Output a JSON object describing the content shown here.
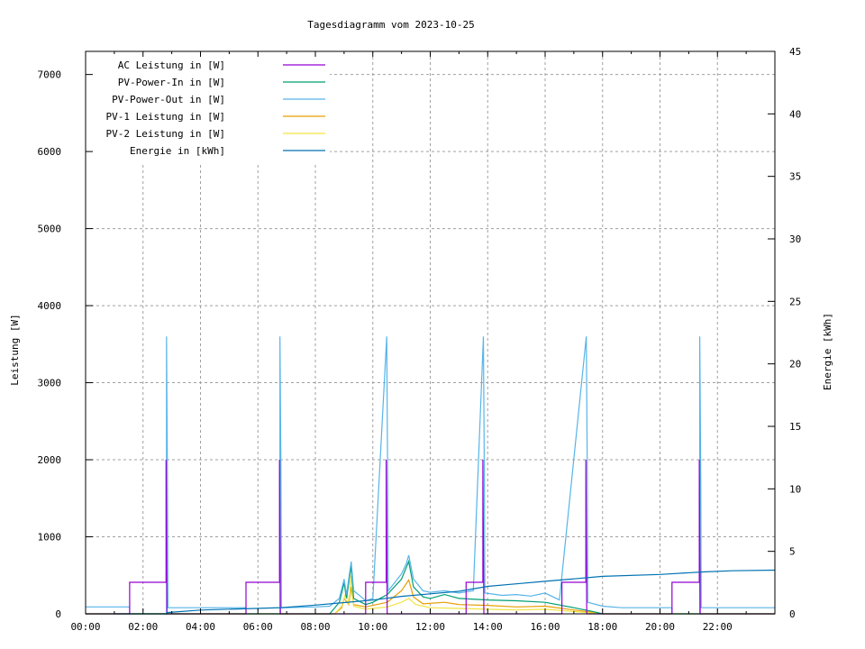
{
  "chart_data": {
    "type": "line",
    "title": "Tagesdiagramm vom 2023-10-25",
    "xlabel": "",
    "ylabel": "Leistung [W]",
    "y2label": "Energie [kWh]",
    "xlim": [
      "00:00",
      "24:00"
    ],
    "ylim": [
      0,
      7300
    ],
    "y2lim": [
      0,
      45
    ],
    "x_ticks": [
      "00:00",
      "02:00",
      "04:00",
      "06:00",
      "08:00",
      "10:00",
      "12:00",
      "14:00",
      "16:00",
      "18:00",
      "20:00",
      "22:00"
    ],
    "y_ticks": [
      "0",
      "1000",
      "2000",
      "3000",
      "4000",
      "5000",
      "6000",
      "7000"
    ],
    "y2_ticks": [
      "0",
      "5",
      "10",
      "15",
      "20",
      "25",
      "30",
      "35",
      "40",
      "45"
    ],
    "grid": true,
    "legend_placement": "top-left",
    "series": [
      {
        "name": "AC Leistung in [W]",
        "color": "#9400d3",
        "axis": "y",
        "points": [
          [
            "00:00",
            0
          ],
          [
            "01:32",
            0
          ],
          [
            "01:32",
            410
          ],
          [
            "02:48",
            410
          ],
          [
            "02:48",
            2000
          ],
          [
            "02:50",
            0
          ],
          [
            "05:35",
            0
          ],
          [
            "05:35",
            410
          ],
          [
            "06:45",
            410
          ],
          [
            "06:45",
            2000
          ],
          [
            "06:47",
            0
          ],
          [
            "09:45",
            0
          ],
          [
            "09:45",
            410
          ],
          [
            "10:28",
            410
          ],
          [
            "10:28",
            2000
          ],
          [
            "10:30",
            0
          ],
          [
            "13:15",
            0
          ],
          [
            "13:15",
            410
          ],
          [
            "13:50",
            410
          ],
          [
            "13:50",
            2000
          ],
          [
            "13:52",
            0
          ],
          [
            "16:35",
            0
          ],
          [
            "16:35",
            410
          ],
          [
            "17:25",
            410
          ],
          [
            "17:25",
            2000
          ],
          [
            "17:27",
            0
          ],
          [
            "20:25",
            0
          ],
          [
            "20:25",
            410
          ],
          [
            "21:22",
            410
          ],
          [
            "21:22",
            2000
          ],
          [
            "21:24",
            0
          ],
          [
            "24:00",
            0
          ]
        ]
      },
      {
        "name": "PV-Power-In in [W]",
        "color": "#009e73",
        "axis": "y",
        "points": [
          [
            "00:00",
            0
          ],
          [
            "08:30",
            0
          ],
          [
            "08:50",
            150
          ],
          [
            "09:00",
            400
          ],
          [
            "09:05",
            200
          ],
          [
            "09:15",
            620
          ],
          [
            "09:20",
            200
          ],
          [
            "09:45",
            120
          ],
          [
            "10:00",
            150
          ],
          [
            "10:30",
            250
          ],
          [
            "11:00",
            450
          ],
          [
            "11:15",
            680
          ],
          [
            "11:25",
            350
          ],
          [
            "11:45",
            220
          ],
          [
            "12:00",
            200
          ],
          [
            "12:30",
            250
          ],
          [
            "13:00",
            200
          ],
          [
            "14:00",
            180
          ],
          [
            "15:00",
            170
          ],
          [
            "16:00",
            150
          ],
          [
            "17:00",
            80
          ],
          [
            "17:40",
            30
          ],
          [
            "18:00",
            0
          ],
          [
            "24:00",
            0
          ]
        ]
      },
      {
        "name": "PV-Power-Out in [W]",
        "color": "#56b4e9",
        "axis": "y",
        "points": [
          [
            "00:00",
            90
          ],
          [
            "01:32",
            90
          ],
          [
            "01:32",
            0
          ],
          [
            "02:49",
            0
          ],
          [
            "02:49",
            3600
          ],
          [
            "02:51",
            1800
          ],
          [
            "02:52",
            80
          ],
          [
            "05:35",
            80
          ],
          [
            "05:35",
            0
          ],
          [
            "06:46",
            0
          ],
          [
            "06:46",
            3600
          ],
          [
            "06:48",
            1800
          ],
          [
            "06:49",
            80
          ],
          [
            "08:00",
            90
          ],
          [
            "08:30",
            100
          ],
          [
            "08:50",
            200
          ],
          [
            "09:00",
            450
          ],
          [
            "09:05",
            250
          ],
          [
            "09:15",
            680
          ],
          [
            "09:20",
            300
          ],
          [
            "09:30",
            250
          ],
          [
            "09:45",
            170
          ],
          [
            "10:00",
            200
          ],
          [
            "10:29",
            3600
          ],
          [
            "10:31",
            1800
          ],
          [
            "10:32",
            300
          ],
          [
            "10:45",
            400
          ],
          [
            "11:00",
            520
          ],
          [
            "11:10",
            650
          ],
          [
            "11:15",
            760
          ],
          [
            "11:25",
            450
          ],
          [
            "11:45",
            300
          ],
          [
            "12:00",
            280
          ],
          [
            "12:30",
            300
          ],
          [
            "13:00",
            270
          ],
          [
            "13:30",
            300
          ],
          [
            "13:51",
            3600
          ],
          [
            "13:53",
            1800
          ],
          [
            "13:54",
            270
          ],
          [
            "14:30",
            240
          ],
          [
            "15:00",
            250
          ],
          [
            "15:30",
            230
          ],
          [
            "16:00",
            270
          ],
          [
            "16:30",
            180
          ],
          [
            "17:26",
            3600
          ],
          [
            "17:28",
            1800
          ],
          [
            "17:29",
            150
          ],
          [
            "18:00",
            100
          ],
          [
            "18:40",
            80
          ],
          [
            "20:25",
            80
          ],
          [
            "20:25",
            0
          ],
          [
            "21:23",
            0
          ],
          [
            "21:23",
            3600
          ],
          [
            "21:25",
            1800
          ],
          [
            "21:26",
            80
          ],
          [
            "24:00",
            80
          ]
        ]
      },
      {
        "name": "PV-1 Leistung in [W]",
        "color": "#e69f00",
        "axis": "y",
        "points": [
          [
            "00:00",
            0
          ],
          [
            "08:40",
            0
          ],
          [
            "08:55",
            80
          ],
          [
            "09:00",
            200
          ],
          [
            "09:10",
            120
          ],
          [
            "09:15",
            350
          ],
          [
            "09:20",
            120
          ],
          [
            "09:45",
            90
          ],
          [
            "10:30",
            150
          ],
          [
            "11:00",
            300
          ],
          [
            "11:15",
            440
          ],
          [
            "11:25",
            220
          ],
          [
            "11:45",
            130
          ],
          [
            "12:30",
            150
          ],
          [
            "13:00",
            120
          ],
          [
            "14:00",
            110
          ],
          [
            "15:00",
            90
          ],
          [
            "16:00",
            100
          ],
          [
            "17:00",
            50
          ],
          [
            "17:40",
            20
          ],
          [
            "18:00",
            0
          ],
          [
            "24:00",
            0
          ]
        ]
      },
      {
        "name": "PV-2 Leistung in [W]",
        "color": "#f0e442",
        "axis": "y",
        "points": [
          [
            "00:00",
            0
          ],
          [
            "08:40",
            0
          ],
          [
            "08:55",
            100
          ],
          [
            "09:05",
            300
          ],
          [
            "09:10",
            120
          ],
          [
            "09:15",
            500
          ],
          [
            "09:20",
            100
          ],
          [
            "09:45",
            60
          ],
          [
            "10:30",
            90
          ],
          [
            "11:00",
            150
          ],
          [
            "11:15",
            200
          ],
          [
            "11:30",
            120
          ],
          [
            "12:00",
            80
          ],
          [
            "13:00",
            70
          ],
          [
            "14:00",
            60
          ],
          [
            "15:00",
            50
          ],
          [
            "16:00",
            60
          ],
          [
            "17:00",
            30
          ],
          [
            "17:40",
            10
          ],
          [
            "18:00",
            0
          ],
          [
            "24:00",
            0
          ]
        ]
      },
      {
        "name": "Energie in [kWh]",
        "color": "#0072b2",
        "axis": "y2",
        "points": [
          [
            "01:00",
            0
          ],
          [
            "02:50",
            0
          ],
          [
            "02:50",
            0.1
          ],
          [
            "04:00",
            0.3
          ],
          [
            "06:50",
            0.5
          ],
          [
            "08:00",
            0.7
          ],
          [
            "09:00",
            0.9
          ],
          [
            "10:00",
            1.1
          ],
          [
            "11:00",
            1.4
          ],
          [
            "12:00",
            1.6
          ],
          [
            "13:00",
            1.8
          ],
          [
            "14:00",
            2.2
          ],
          [
            "15:00",
            2.4
          ],
          [
            "16:00",
            2.6
          ],
          [
            "17:00",
            2.8
          ],
          [
            "18:00",
            3.0
          ],
          [
            "20:00",
            3.15
          ],
          [
            "21:30",
            3.35
          ],
          [
            "22:30",
            3.45
          ],
          [
            "24:00",
            3.5
          ]
        ]
      }
    ]
  }
}
